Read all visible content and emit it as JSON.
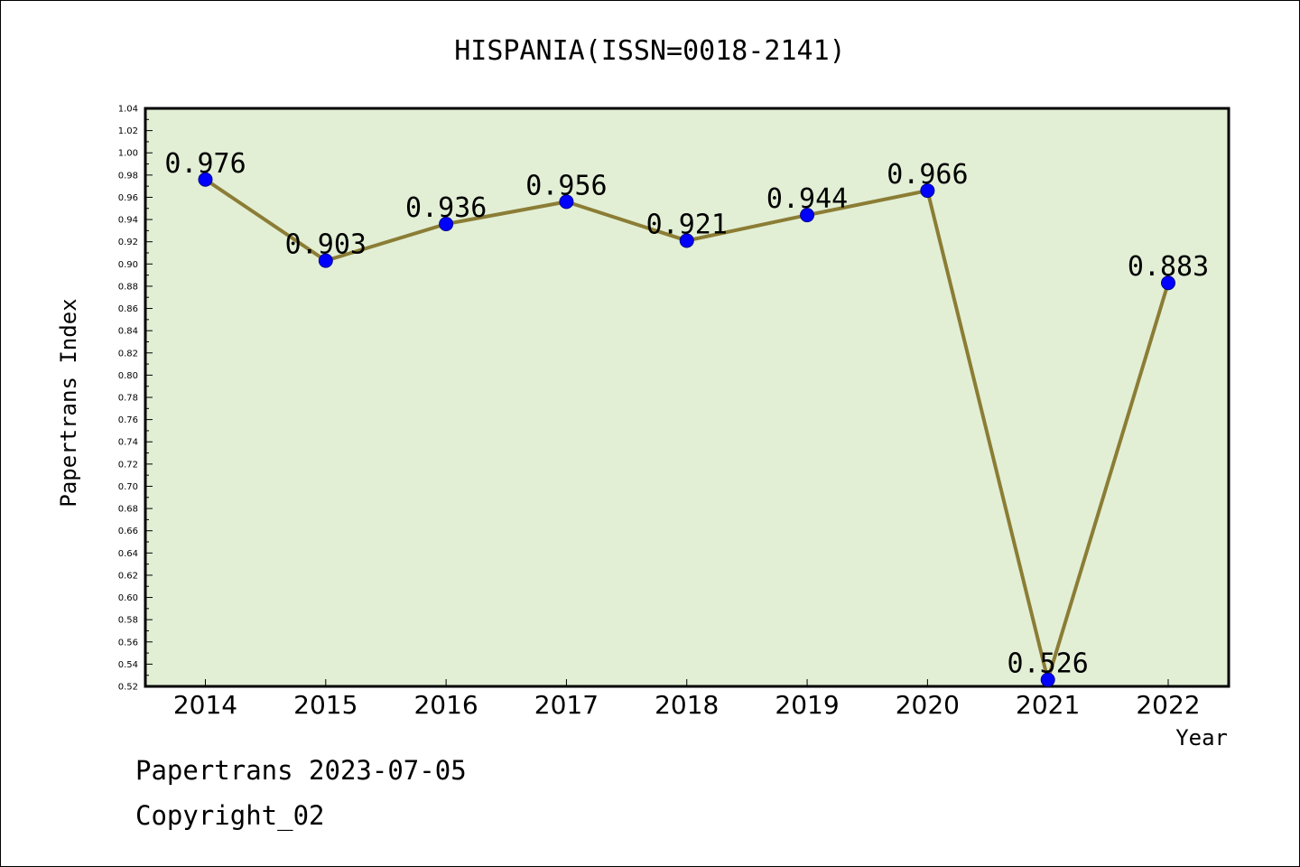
{
  "chart_data": {
    "type": "line",
    "title": "HISPANIA(ISSN=0018-2141)",
    "xlabel": "Year",
    "ylabel": "Papertrans Index",
    "categories": [
      "2014",
      "2015",
      "2016",
      "2017",
      "2018",
      "2019",
      "2020",
      "2021",
      "2022"
    ],
    "values": [
      0.976,
      0.903,
      0.936,
      0.956,
      0.921,
      0.944,
      0.966,
      0.526,
      0.883
    ],
    "data_labels": [
      "0.976",
      "0.903",
      "0.936",
      "0.956",
      "0.921",
      "0.944",
      "0.966",
      "0.526",
      "0.883"
    ],
    "ylim": [
      0.52,
      1.04
    ],
    "yticks": [
      "0.52",
      "0.54",
      "0.56",
      "0.58",
      "0.60",
      "0.62",
      "0.64",
      "0.66",
      "0.68",
      "0.70",
      "0.72",
      "0.74",
      "0.76",
      "0.78",
      "0.80",
      "0.82",
      "0.84",
      "0.86",
      "0.88",
      "0.90",
      "0.92",
      "0.94",
      "0.96",
      "0.98",
      "1.00",
      "1.02",
      "1.04"
    ],
    "grid": false,
    "colors": {
      "plot_background": "#e2efd5",
      "line": "#8b7d35",
      "marker": "#0000ff"
    }
  },
  "footer": {
    "line1": "Papertrans 2023-07-05",
    "line2": "Copyright_02"
  }
}
